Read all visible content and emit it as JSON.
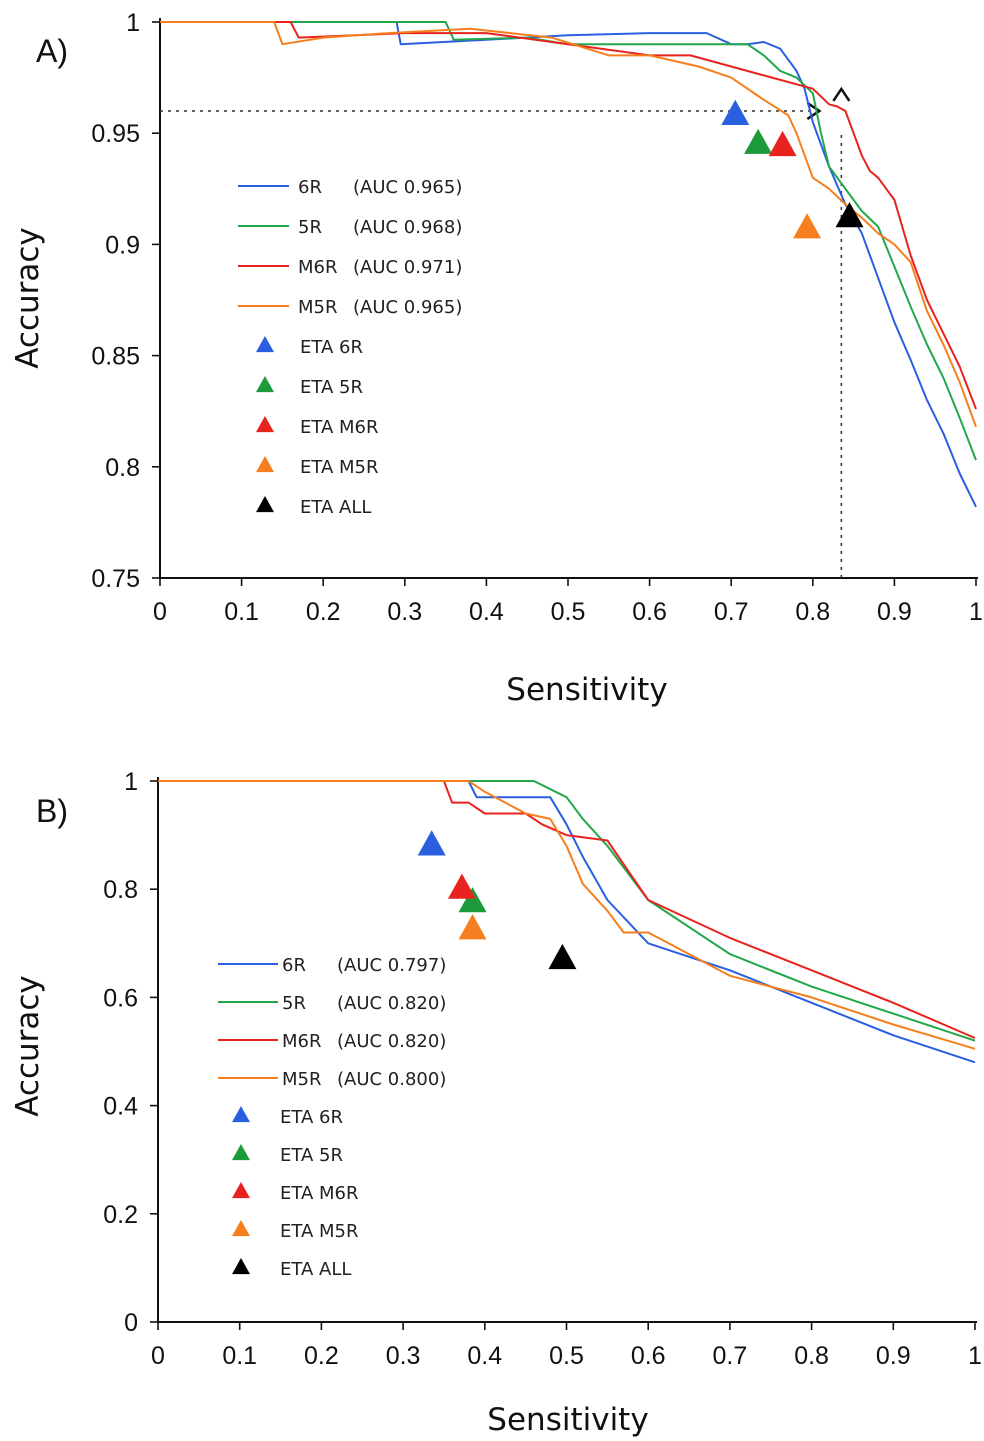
{
  "chart_data": [
    {
      "panel": "A)",
      "type": "line",
      "xlabel": "Sensitivity",
      "ylabel": "Accuracy",
      "xlim": [
        0,
        1
      ],
      "ylim": [
        0.75,
        1
      ],
      "xticks": [
        "0",
        "0.1",
        "0.2",
        "0.3",
        "0.4",
        "0.5",
        "0.6",
        "0.7",
        "0.8",
        "0.9",
        "1"
      ],
      "yticks": [
        "0.75",
        "0.8",
        "0.85",
        "0.9",
        "0.95",
        "1"
      ],
      "ytick_values": [
        0.75,
        0.8,
        0.85,
        0.9,
        0.95,
        1
      ],
      "series": [
        {
          "name": "6R",
          "label": "(AUC 0.965)",
          "color": "#2a5fe0",
          "x": [
            0,
            0.15,
            0.29,
            0.295,
            0.4,
            0.5,
            0.6,
            0.67,
            0.7,
            0.72,
            0.74,
            0.76,
            0.78,
            0.79,
            0.8,
            0.82,
            0.84,
            0.86,
            0.88,
            0.9,
            0.92,
            0.94,
            0.96,
            0.98,
            1
          ],
          "y": [
            1,
            1,
            1,
            0.99,
            0.992,
            0.994,
            0.995,
            0.995,
            0.99,
            0.99,
            0.991,
            0.988,
            0.978,
            0.97,
            0.955,
            0.935,
            0.918,
            0.905,
            0.885,
            0.865,
            0.848,
            0.83,
            0.815,
            0.797,
            0.782
          ]
        },
        {
          "name": "5R",
          "label": "(AUC 0.968)",
          "color": "#22a84a",
          "x": [
            0,
            0.35,
            0.36,
            0.45,
            0.5,
            0.6,
            0.7,
            0.72,
            0.74,
            0.76,
            0.78,
            0.8,
            0.81,
            0.82,
            0.84,
            0.86,
            0.88,
            0.9,
            0.92,
            0.94,
            0.96,
            0.98,
            1
          ],
          "y": [
            1,
            1,
            0.992,
            0.993,
            0.99,
            0.99,
            0.99,
            0.99,
            0.985,
            0.978,
            0.975,
            0.968,
            0.95,
            0.935,
            0.925,
            0.915,
            0.908,
            0.89,
            0.872,
            0.855,
            0.84,
            0.822,
            0.803
          ]
        },
        {
          "name": "M6R",
          "label": "(AUC 0.971)",
          "color": "#e8231f",
          "x": [
            0,
            0.16,
            0.17,
            0.3,
            0.4,
            0.5,
            0.6,
            0.65,
            0.7,
            0.75,
            0.8,
            0.82,
            0.83,
            0.84,
            0.85,
            0.86,
            0.87,
            0.88,
            0.9,
            0.92,
            0.94,
            0.96,
            0.98,
            1
          ],
          "y": [
            1,
            1,
            0.993,
            0.995,
            0.995,
            0.99,
            0.985,
            0.985,
            0.98,
            0.975,
            0.97,
            0.963,
            0.962,
            0.96,
            0.95,
            0.94,
            0.933,
            0.93,
            0.92,
            0.895,
            0.875,
            0.86,
            0.845,
            0.826
          ]
        },
        {
          "name": "M5R",
          "label": "(AUC 0.965)",
          "color": "#f57f1e",
          "x": [
            0,
            0.14,
            0.15,
            0.2,
            0.28,
            0.38,
            0.48,
            0.55,
            0.6,
            0.66,
            0.7,
            0.74,
            0.77,
            0.78,
            0.8,
            0.82,
            0.84,
            0.86,
            0.88,
            0.9,
            0.92,
            0.94,
            0.96,
            0.98,
            1
          ],
          "y": [
            1,
            1,
            0.99,
            0.993,
            0.995,
            0.997,
            0.993,
            0.985,
            0.985,
            0.98,
            0.975,
            0.965,
            0.958,
            0.95,
            0.93,
            0.925,
            0.918,
            0.912,
            0.905,
            0.9,
            0.892,
            0.87,
            0.855,
            0.838,
            0.818
          ]
        }
      ],
      "markers": [
        {
          "name": "ETA 6R",
          "color": "#2a5fe0",
          "x": 0.705,
          "y": 0.958
        },
        {
          "name": "ETA 5R",
          "color": "#1d9a3a",
          "x": 0.733,
          "y": 0.945
        },
        {
          "name": "ETA M6R",
          "color": "#e8231f",
          "x": 0.763,
          "y": 0.944
        },
        {
          "name": "ETA M5R",
          "color": "#f57f1e",
          "x": 0.793,
          "y": 0.907
        },
        {
          "name": "ETA ALL",
          "color": "#000000",
          "x": 0.845,
          "y": 0.912
        }
      ],
      "reference": {
        "x": 0.835,
        "y": 0.96
      }
    },
    {
      "panel": "B)",
      "type": "line",
      "xlabel": "Sensitivity",
      "ylabel": "Accuracy",
      "xlim": [
        0,
        1
      ],
      "ylim": [
        0,
        1
      ],
      "xticks": [
        "0",
        "0.1",
        "0.2",
        "0.3",
        "0.4",
        "0.5",
        "0.6",
        "0.7",
        "0.8",
        "0.9",
        "1"
      ],
      "yticks": [
        "0",
        "0.2",
        "0.4",
        "0.6",
        "0.8",
        "1"
      ],
      "ytick_values": [
        0,
        0.2,
        0.4,
        0.6,
        0.8,
        1
      ],
      "series": [
        {
          "name": "6R",
          "label": "(AUC 0.797)",
          "color": "#2a5fe0",
          "x": [
            0,
            0.38,
            0.39,
            0.48,
            0.5,
            0.52,
            0.55,
            0.6,
            0.7,
            0.8,
            0.9,
            1
          ],
          "y": [
            1,
            1,
            0.97,
            0.97,
            0.92,
            0.86,
            0.78,
            0.7,
            0.65,
            0.59,
            0.53,
            0.48
          ]
        },
        {
          "name": "5R",
          "label": "(AUC 0.820)",
          "color": "#22a84a",
          "x": [
            0,
            0.45,
            0.46,
            0.5,
            0.52,
            0.55,
            0.6,
            0.7,
            0.8,
            0.9,
            1
          ],
          "y": [
            1,
            1,
            1,
            0.97,
            0.93,
            0.88,
            0.78,
            0.68,
            0.62,
            0.57,
            0.52
          ]
        },
        {
          "name": "M6R",
          "label": "(AUC 0.820)",
          "color": "#e8231f",
          "x": [
            0,
            0.35,
            0.36,
            0.38,
            0.4,
            0.45,
            0.47,
            0.5,
            0.55,
            0.6,
            0.7,
            0.8,
            0.9,
            1
          ],
          "y": [
            1,
            1,
            0.96,
            0.96,
            0.94,
            0.94,
            0.92,
            0.9,
            0.89,
            0.78,
            0.71,
            0.65,
            0.59,
            0.525
          ]
        },
        {
          "name": "M5R",
          "label": "(AUC 0.800)",
          "color": "#f57f1e",
          "x": [
            0,
            0.38,
            0.4,
            0.45,
            0.48,
            0.5,
            0.52,
            0.55,
            0.57,
            0.6,
            0.7,
            0.8,
            0.9,
            1
          ],
          "y": [
            1,
            1,
            0.98,
            0.94,
            0.93,
            0.88,
            0.81,
            0.76,
            0.72,
            0.72,
            0.64,
            0.6,
            0.55,
            0.505
          ]
        }
      ],
      "markers": [
        {
          "name": "ETA 6R",
          "color": "#2a5fe0",
          "x": 0.335,
          "y": 0.88
        },
        {
          "name": "ETA 5R",
          "color": "#1d9a3a",
          "x": 0.385,
          "y": 0.775
        },
        {
          "name": "ETA M6R",
          "color": "#e8231f",
          "x": 0.372,
          "y": 0.8
        },
        {
          "name": "ETA M5R",
          "color": "#f57f1e",
          "x": 0.385,
          "y": 0.725
        },
        {
          "name": "ETA ALL",
          "color": "#000000",
          "x": 0.495,
          "y": 0.67
        }
      ]
    }
  ]
}
